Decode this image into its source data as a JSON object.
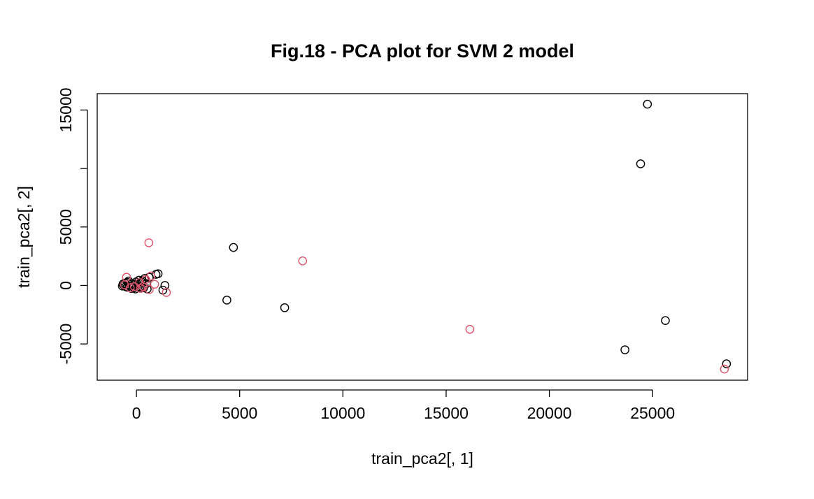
{
  "chart_data": {
    "type": "scatter",
    "title": "Fig.18 - PCA plot for SVM 2 model",
    "xlabel": "train_pca2[, 1]",
    "ylabel": "train_pca2[, 2]",
    "xlim": [
      -1900,
      29600
    ],
    "ylim": [
      -8100,
      16400
    ],
    "x_ticks": [
      0,
      5000,
      10000,
      15000,
      20000,
      25000
    ],
    "x_tick_labels": [
      "0",
      "5000",
      "10000",
      "15000",
      "20000",
      "25000"
    ],
    "y_ticks": [
      -5000,
      0,
      5000,
      15000
    ],
    "y_tick_labels": [
      "-5000",
      "0",
      "5000",
      "15000"
    ],
    "y_tick_marks": [
      -5000,
      0,
      5000,
      10000,
      15000
    ],
    "grid": false,
    "series": [
      {
        "color": "#000000",
        "points": [
          {
            "x": 24750,
            "y": 15500
          },
          {
            "x": 24420,
            "y": 10400
          },
          {
            "x": 4700,
            "y": 3250
          },
          {
            "x": 7180,
            "y": -1900
          },
          {
            "x": 4380,
            "y": -1250
          },
          {
            "x": 25620,
            "y": -3000
          },
          {
            "x": 23660,
            "y": -5500
          },
          {
            "x": 28580,
            "y": -6700
          },
          {
            "x": 1380,
            "y": 0
          },
          {
            "x": 1280,
            "y": -400
          },
          {
            "x": 1050,
            "y": 1000
          },
          {
            "x": 950,
            "y": 950
          },
          {
            "x": 620,
            "y": 700
          },
          {
            "x": 520,
            "y": -300
          },
          {
            "x": 400,
            "y": 600
          },
          {
            "x": 280,
            "y": 400
          },
          {
            "x": 180,
            "y": 200
          },
          {
            "x": 80,
            "y": -100
          },
          {
            "x": -20,
            "y": 300
          },
          {
            "x": -120,
            "y": -200
          },
          {
            "x": -220,
            "y": 150
          },
          {
            "x": -320,
            "y": -50
          },
          {
            "x": -420,
            "y": 250
          },
          {
            "x": -520,
            "y": -100
          },
          {
            "x": -600,
            "y": 0
          },
          {
            "x": -680,
            "y": -50
          },
          {
            "x": -550,
            "y": 200
          },
          {
            "x": -450,
            "y": -150
          },
          {
            "x": -350,
            "y": 100
          },
          {
            "x": -250,
            "y": -250
          },
          {
            "x": -150,
            "y": 50
          },
          {
            "x": -50,
            "y": -300
          },
          {
            "x": 50,
            "y": 100
          },
          {
            "x": 150,
            "y": -150
          },
          {
            "x": 250,
            "y": 300
          },
          {
            "x": 350,
            "y": -200
          },
          {
            "x": -650,
            "y": 120
          },
          {
            "x": -380,
            "y": 380
          },
          {
            "x": 120,
            "y": 450
          },
          {
            "x": 480,
            "y": 150
          }
        ]
      },
      {
        "color": "#DF536B",
        "points": [
          {
            "x": 600,
            "y": 3650
          },
          {
            "x": 8050,
            "y": 2100
          },
          {
            "x": 16150,
            "y": -3750
          },
          {
            "x": 28480,
            "y": -7150
          },
          {
            "x": 1450,
            "y": -600
          },
          {
            "x": 700,
            "y": 800
          },
          {
            "x": 620,
            "y": -350
          },
          {
            "x": 880,
            "y": 100
          },
          {
            "x": -480,
            "y": 700
          },
          {
            "x": -300,
            "y": -200
          },
          {
            "x": -100,
            "y": -100
          },
          {
            "x": 150,
            "y": 250
          },
          {
            "x": 320,
            "y": -100
          },
          {
            "x": -580,
            "y": 50
          },
          {
            "x": 450,
            "y": 500
          },
          {
            "x": 200,
            "y": -250
          }
        ]
      }
    ]
  }
}
